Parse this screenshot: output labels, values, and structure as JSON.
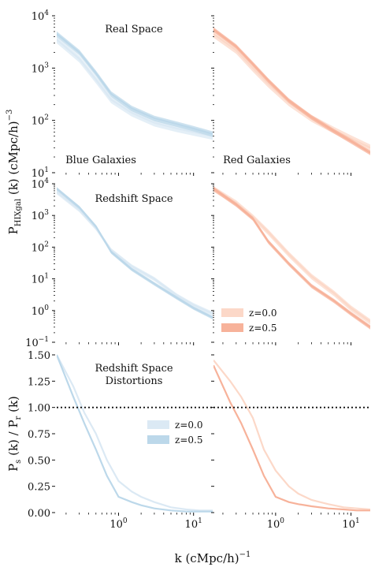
{
  "figure": {
    "ylabel_top": "P",
    "ylabel_top_sub": "HIXgal",
    "ylabel_top_tail": " (k) (cMpc/h)",
    "ylabel_top_exp": "−3",
    "ylabel_bottom": "P",
    "ylabel_bottom_sub1": "s",
    "ylabel_bottom_mid": " (k) / P",
    "ylabel_bottom_sub2": "r",
    "ylabel_bottom_tail": " (k)",
    "xlabel": "k (cMpc/h)",
    "xlabel_exp": "−1",
    "colors": {
      "blue_z0": "#dbe9f4",
      "blue_z05": "#bcd8ea",
      "red_z0": "#fcd8c8",
      "red_z05": "#f7b29a"
    }
  },
  "panels": {
    "real_title": "Real Space",
    "redshift_title": "Redshift Space",
    "rsd_title_line1": "Redshift Space",
    "rsd_title_line2": "Distortions",
    "blue_label": "Blue Galaxies",
    "red_label": "Red Galaxies",
    "legend_red_z0": "z=0.0",
    "legend_red_z05": "z=0.5",
    "legend_blue_z0": "z=0.0",
    "legend_blue_z05": "z=0.5"
  },
  "axes_ticks": {
    "real_y": [
      "10",
      "10",
      "10",
      "10"
    ],
    "real_y_exp": [
      "4",
      "3",
      "2",
      "1"
    ],
    "red_y": [
      "10",
      "10",
      "10",
      "10",
      "10",
      "10"
    ],
    "red_y_exp": [
      "4",
      "3",
      "2",
      "1",
      "0",
      "−1"
    ],
    "rsd_y": [
      "1.50",
      "1.25",
      "1.00",
      "0.75",
      "0.50",
      "0.25",
      "0.00"
    ],
    "x": [
      "10",
      "10"
    ],
    "x_exp": [
      "0",
      "1"
    ]
  },
  "chart_data": [
    {
      "type": "line",
      "panel": "real-space-blue",
      "xscale": "log",
      "yscale": "log",
      "xlim": [
        0.15,
        18
      ],
      "ylim": [
        10,
        10000
      ],
      "series": [
        {
          "name": "z=0.0",
          "x": [
            0.15,
            0.3,
            0.5,
            0.8,
            1.5,
            3,
            6,
            10,
            18
          ],
          "values": [
            3500,
            1500,
            600,
            250,
            140,
            90,
            70,
            60,
            50
          ],
          "band": [
            0.85,
            1.15
          ]
        },
        {
          "name": "z=0.5",
          "x": [
            0.15,
            0.3,
            0.5,
            0.8,
            1.5,
            3,
            6,
            10,
            18
          ],
          "values": [
            4500,
            2000,
            800,
            320,
            170,
            110,
            85,
            70,
            55
          ],
          "band": [
            0.88,
            1.12
          ]
        }
      ]
    },
    {
      "type": "line",
      "panel": "real-space-red",
      "xscale": "log",
      "yscale": "log",
      "xlim": [
        0.15,
        18
      ],
      "ylim": [
        10,
        10000
      ],
      "series": [
        {
          "name": "z=0.0",
          "x": [
            0.15,
            0.3,
            0.5,
            0.8,
            1.5,
            3,
            6,
            10,
            18
          ],
          "values": [
            4500,
            2200,
            1000,
            500,
            220,
            110,
            65,
            45,
            30
          ],
          "band": [
            0.85,
            1.15
          ]
        },
        {
          "name": "z=0.5",
          "x": [
            0.15,
            0.3,
            0.5,
            0.8,
            1.5,
            3,
            6,
            10,
            18
          ],
          "values": [
            5500,
            2600,
            1200,
            580,
            240,
            115,
            62,
            40,
            24
          ],
          "band": [
            0.9,
            1.1
          ]
        }
      ]
    },
    {
      "type": "line",
      "panel": "redshift-space-blue",
      "xscale": "log",
      "yscale": "log",
      "xlim": [
        0.15,
        18
      ],
      "ylim": [
        0.1,
        10000
      ],
      "series": [
        {
          "name": "z=0.0",
          "x": [
            0.15,
            0.3,
            0.5,
            0.8,
            1.5,
            3,
            6,
            10,
            18
          ],
          "values": [
            5500,
            1500,
            400,
            80,
            25,
            10,
            3,
            1.5,
            0.8
          ],
          "band": [
            0.85,
            1.15
          ]
        },
        {
          "name": "z=0.5",
          "x": [
            0.15,
            0.3,
            0.5,
            0.8,
            1.5,
            3,
            6,
            10,
            18
          ],
          "values": [
            7000,
            1800,
            450,
            70,
            20,
            7,
            2.5,
            1.2,
            0.6
          ],
          "band": [
            0.88,
            1.12
          ]
        }
      ]
    },
    {
      "type": "line",
      "panel": "redshift-space-red",
      "xscale": "log",
      "yscale": "log",
      "xlim": [
        0.15,
        18
      ],
      "ylim": [
        0.1,
        10000
      ],
      "series": [
        {
          "name": "z=0.0",
          "x": [
            0.15,
            0.3,
            0.5,
            0.8,
            1.5,
            3,
            6,
            10,
            18
          ],
          "values": [
            7000,
            2500,
            900,
            300,
            60,
            12,
            3.5,
            1.2,
            0.45
          ],
          "band": [
            0.8,
            1.2
          ]
        },
        {
          "name": "z=0.5",
          "x": [
            0.15,
            0.3,
            0.5,
            0.8,
            1.5,
            3,
            6,
            10,
            18
          ],
          "values": [
            7000,
            2200,
            800,
            150,
            30,
            6,
            2,
            0.8,
            0.3
          ],
          "band": [
            0.85,
            1.15
          ]
        }
      ]
    },
    {
      "type": "line",
      "panel": "rsd-blue",
      "xscale": "log",
      "yscale": "linear",
      "xlim": [
        0.15,
        18
      ],
      "ylim": [
        0,
        1.5
      ],
      "hline": 1.0,
      "series": [
        {
          "name": "z=0.0",
          "x": [
            0.15,
            0.25,
            0.35,
            0.5,
            0.7,
            1.0,
            1.5,
            2,
            3,
            5,
            8,
            12,
            18
          ],
          "values": [
            1.5,
            1.2,
            0.95,
            0.75,
            0.5,
            0.3,
            0.2,
            0.15,
            0.1,
            0.05,
            0.03,
            0.02,
            0.02
          ]
        },
        {
          "name": "z=0.5",
          "x": [
            0.15,
            0.25,
            0.35,
            0.5,
            0.7,
            1.0,
            1.5,
            2,
            3,
            5,
            8,
            12,
            18
          ],
          "values": [
            1.5,
            1.1,
            0.85,
            0.6,
            0.35,
            0.15,
            0.1,
            0.07,
            0.04,
            0.02,
            0.01,
            0.01,
            0.01
          ]
        }
      ]
    },
    {
      "type": "line",
      "panel": "rsd-red",
      "xscale": "log",
      "yscale": "linear",
      "xlim": [
        0.15,
        18
      ],
      "ylim": [
        0,
        1.5
      ],
      "hline": 1.0,
      "series": [
        {
          "name": "z=0.0",
          "x": [
            0.15,
            0.25,
            0.35,
            0.5,
            0.7,
            1.0,
            1.5,
            2,
            3,
            5,
            8,
            12,
            18
          ],
          "values": [
            1.45,
            1.25,
            1.1,
            0.9,
            0.6,
            0.4,
            0.25,
            0.18,
            0.12,
            0.08,
            0.05,
            0.04,
            0.03
          ]
        },
        {
          "name": "z=0.5",
          "x": [
            0.15,
            0.25,
            0.35,
            0.5,
            0.7,
            1.0,
            1.5,
            2,
            3,
            5,
            8,
            12,
            18
          ],
          "values": [
            1.4,
            1.05,
            0.85,
            0.6,
            0.35,
            0.15,
            0.1,
            0.08,
            0.06,
            0.04,
            0.03,
            0.02,
            0.02
          ]
        }
      ]
    }
  ]
}
